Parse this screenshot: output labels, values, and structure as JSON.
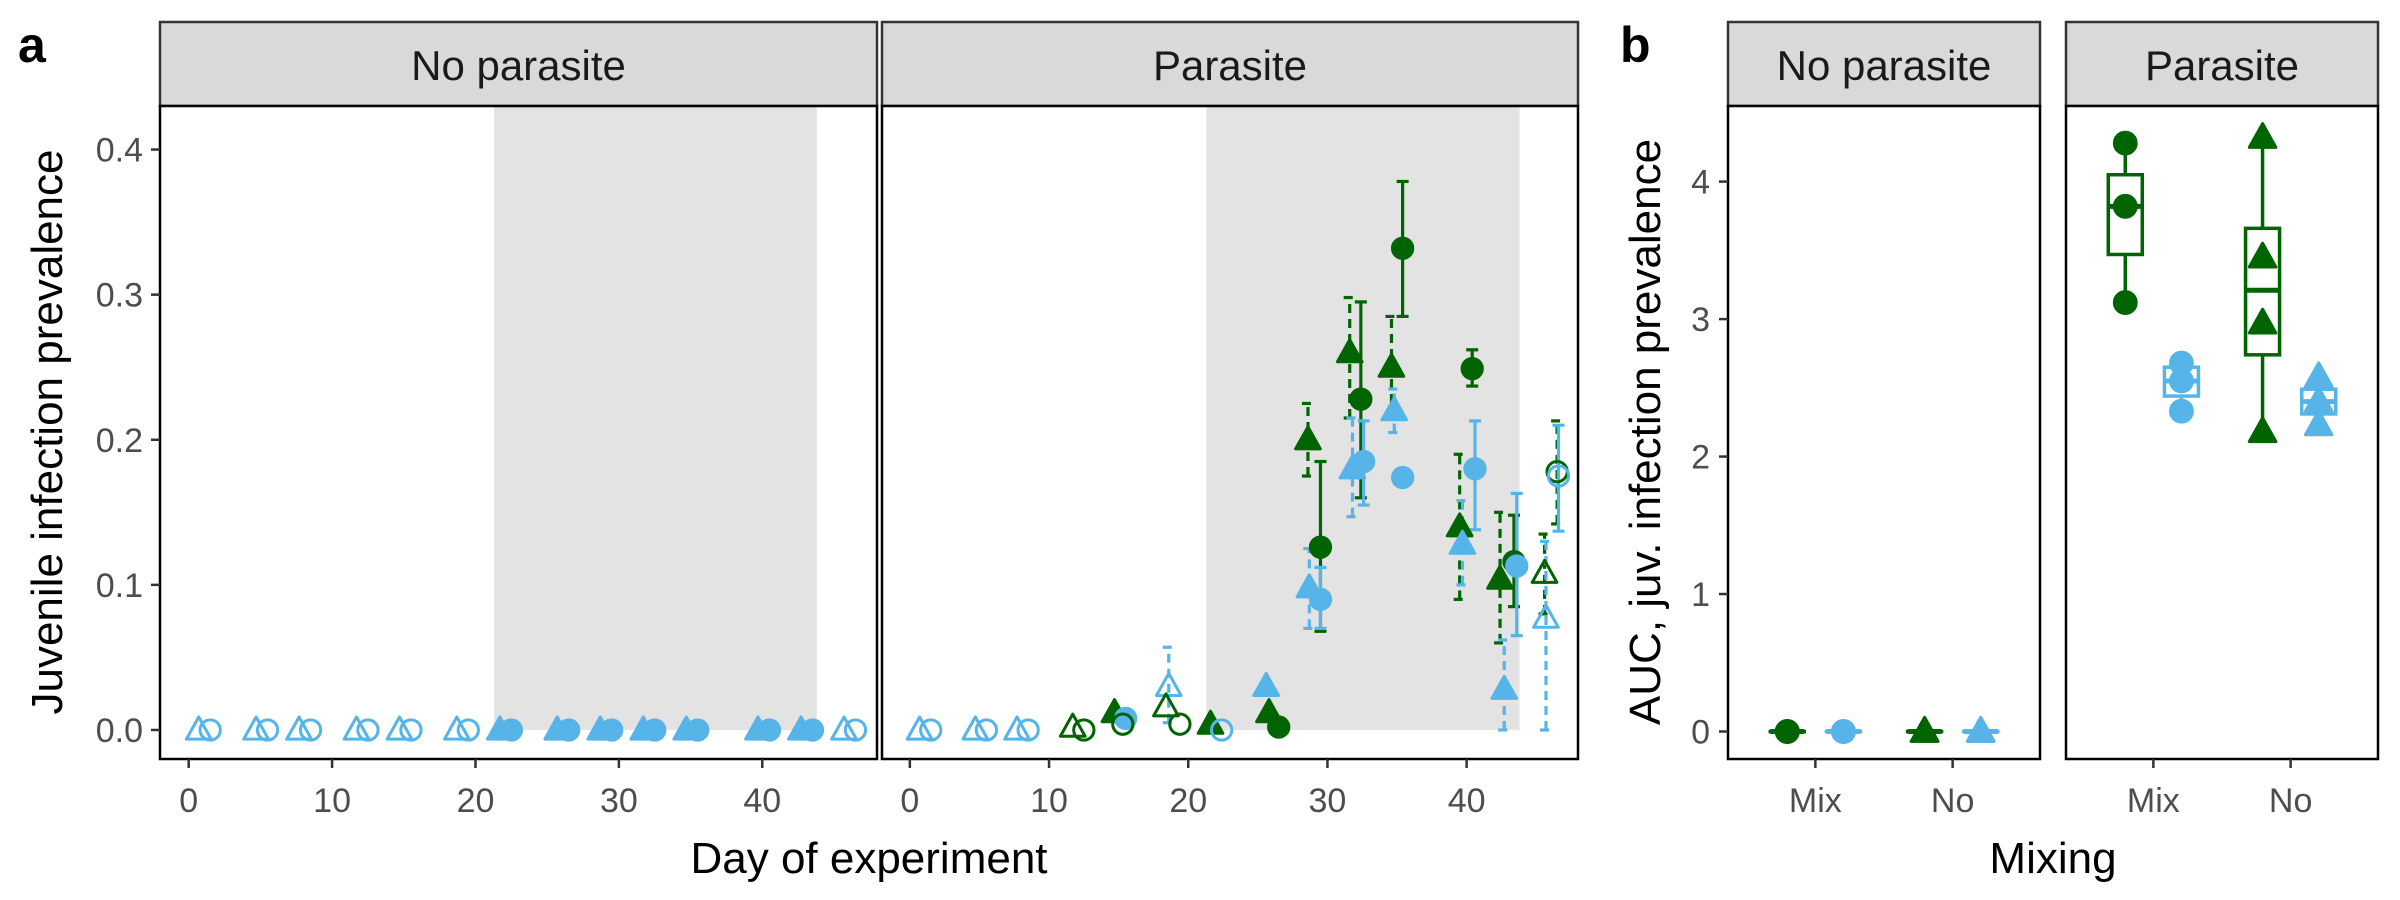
{
  "colors": {
    "treatment_a": "#006400",
    "treatment_b": "#56B4E9",
    "shade": "#e3e3e3",
    "strip": "#d9d9d9"
  },
  "chart_data": [
    {
      "panel": "a",
      "type": "scatter",
      "xlabel": "Day of experiment",
      "ylabel": "Juvenile infection prevalence",
      "xlim": [
        -2,
        48
      ],
      "ylim": [
        -0.02,
        0.43
      ],
      "x_ticks": [
        0,
        10,
        20,
        30,
        40
      ],
      "y_ticks": [
        0.0,
        0.1,
        0.2,
        0.3,
        0.4
      ],
      "y_tick_labels": [
        "0.0",
        "0.1",
        "0.2",
        "0.3",
        "0.4"
      ],
      "shaded_x_range": [
        21.3,
        43.8
      ],
      "facets": [
        {
          "strip": "No parasite",
          "points": [
            {
              "x": 0.7,
              "y": 0,
              "c": "treatment_b",
              "s": "triangle",
              "f": false
            },
            {
              "x": 1.5,
              "y": 0,
              "c": "treatment_b",
              "s": "circle",
              "f": false
            },
            {
              "x": 4.7,
              "y": 0,
              "c": "treatment_b",
              "s": "triangle",
              "f": false
            },
            {
              "x": 5.5,
              "y": 0,
              "c": "treatment_b",
              "s": "circle",
              "f": false
            },
            {
              "x": 7.7,
              "y": 0,
              "c": "treatment_b",
              "s": "triangle",
              "f": false
            },
            {
              "x": 8.5,
              "y": 0,
              "c": "treatment_b",
              "s": "circle",
              "f": false
            },
            {
              "x": 11.7,
              "y": 0,
              "c": "treatment_b",
              "s": "triangle",
              "f": false
            },
            {
              "x": 12.5,
              "y": 0,
              "c": "treatment_b",
              "s": "circle",
              "f": false
            },
            {
              "x": 14.7,
              "y": 0,
              "c": "treatment_b",
              "s": "triangle",
              "f": false
            },
            {
              "x": 15.5,
              "y": 0,
              "c": "treatment_b",
              "s": "circle",
              "f": false
            },
            {
              "x": 18.7,
              "y": 0,
              "c": "treatment_b",
              "s": "triangle",
              "f": false
            },
            {
              "x": 19.5,
              "y": 0,
              "c": "treatment_b",
              "s": "circle",
              "f": false
            },
            {
              "x": 21.7,
              "y": 0,
              "c": "treatment_b",
              "s": "triangle",
              "f": true
            },
            {
              "x": 22.5,
              "y": 0,
              "c": "treatment_b",
              "s": "circle",
              "f": true
            },
            {
              "x": 25.7,
              "y": 0,
              "c": "treatment_b",
              "s": "triangle",
              "f": true
            },
            {
              "x": 26.5,
              "y": 0,
              "c": "treatment_b",
              "s": "circle",
              "f": true
            },
            {
              "x": 28.7,
              "y": 0,
              "c": "treatment_b",
              "s": "triangle",
              "f": true
            },
            {
              "x": 29.5,
              "y": 0,
              "c": "treatment_b",
              "s": "circle",
              "f": true
            },
            {
              "x": 31.7,
              "y": 0,
              "c": "treatment_b",
              "s": "triangle",
              "f": true
            },
            {
              "x": 32.5,
              "y": 0,
              "c": "treatment_b",
              "s": "circle",
              "f": true
            },
            {
              "x": 34.7,
              "y": 0,
              "c": "treatment_b",
              "s": "triangle",
              "f": true
            },
            {
              "x": 35.5,
              "y": 0,
              "c": "treatment_b",
              "s": "circle",
              "f": true
            },
            {
              "x": 39.7,
              "y": 0,
              "c": "treatment_b",
              "s": "triangle",
              "f": true
            },
            {
              "x": 40.5,
              "y": 0,
              "c": "treatment_b",
              "s": "circle",
              "f": true
            },
            {
              "x": 42.7,
              "y": 0,
              "c": "treatment_b",
              "s": "triangle",
              "f": true
            },
            {
              "x": 43.5,
              "y": 0,
              "c": "treatment_b",
              "s": "circle",
              "f": true
            },
            {
              "x": 45.7,
              "y": 0,
              "c": "treatment_b",
              "s": "triangle",
              "f": false
            },
            {
              "x": 46.5,
              "y": 0,
              "c": "treatment_b",
              "s": "circle",
              "f": false
            }
          ]
        },
        {
          "strip": "Parasite",
          "points": [
            {
              "x": 0.7,
              "y": 0,
              "c": "treatment_b",
              "s": "triangle",
              "f": false
            },
            {
              "x": 1.5,
              "y": 0,
              "c": "treatment_b",
              "s": "circle",
              "f": false
            },
            {
              "x": 4.7,
              "y": 0,
              "c": "treatment_b",
              "s": "triangle",
              "f": false
            },
            {
              "x": 5.5,
              "y": 0,
              "c": "treatment_b",
              "s": "circle",
              "f": false
            },
            {
              "x": 7.7,
              "y": 0,
              "c": "treatment_b",
              "s": "triangle",
              "f": false
            },
            {
              "x": 8.5,
              "y": 0,
              "c": "treatment_b",
              "s": "circle",
              "f": false
            },
            {
              "x": 11.7,
              "y": 0.002,
              "c": "treatment_a",
              "s": "triangle",
              "f": false
            },
            {
              "x": 12.5,
              "y": 0,
              "c": "treatment_a",
              "s": "circle",
              "f": false
            },
            {
              "x": 14.7,
              "y": 0.012,
              "c": "treatment_a",
              "s": "triangle",
              "f": true
            },
            {
              "x": 15.5,
              "y": 0.008,
              "c": "treatment_b",
              "s": "circle",
              "f": true
            },
            {
              "x": 15.3,
              "y": 0.004,
              "c": "treatment_a",
              "s": "circle",
              "f": false
            },
            {
              "x": 18.6,
              "y": 0.03,
              "c": "treatment_b",
              "s": "triangle",
              "f": false,
              "lo": 0.005,
              "hi": 0.057,
              "dash": true
            },
            {
              "x": 18.4,
              "y": 0.016,
              "c": "treatment_a",
              "s": "triangle",
              "f": false
            },
            {
              "x": 19.4,
              "y": 0.004,
              "c": "treatment_a",
              "s": "circle",
              "f": false
            },
            {
              "x": 21.6,
              "y": 0.004,
              "c": "treatment_a",
              "s": "triangle",
              "f": true
            },
            {
              "x": 22.4,
              "y": 0,
              "c": "treatment_b",
              "s": "circle",
              "f": false
            },
            {
              "x": 25.6,
              "y": 0.03,
              "c": "treatment_b",
              "s": "triangle",
              "f": true
            },
            {
              "x": 25.8,
              "y": 0.012,
              "c": "treatment_a",
              "s": "triangle",
              "f": true
            },
            {
              "x": 26.5,
              "y": 0.002,
              "c": "treatment_a",
              "s": "circle",
              "f": true
            },
            {
              "x": 28.6,
              "y": 0.2,
              "c": "treatment_a",
              "s": "triangle",
              "f": true,
              "lo": 0.175,
              "hi": 0.225,
              "dash": true
            },
            {
              "x": 28.7,
              "y": 0.098,
              "c": "treatment_b",
              "s": "triangle",
              "f": true,
              "lo": 0.07,
              "hi": 0.125,
              "dash": true
            },
            {
              "x": 29.5,
              "y": 0.126,
              "c": "treatment_a",
              "s": "circle",
              "f": true,
              "lo": 0.068,
              "hi": 0.185,
              "dash": false
            },
            {
              "x": 29.5,
              "y": 0.09,
              "c": "treatment_b",
              "s": "circle",
              "f": true,
              "lo": 0.07,
              "hi": 0.112,
              "dash": false
            },
            {
              "x": 31.6,
              "y": 0.26,
              "c": "treatment_a",
              "s": "triangle",
              "f": true,
              "lo": 0.215,
              "hi": 0.298,
              "dash": true
            },
            {
              "x": 31.8,
              "y": 0.18,
              "c": "treatment_b",
              "s": "triangle",
              "f": true,
              "lo": 0.147,
              "hi": 0.215,
              "dash": true
            },
            {
              "x": 32.4,
              "y": 0.228,
              "c": "treatment_a",
              "s": "circle",
              "f": true,
              "lo": 0.16,
              "hi": 0.295,
              "dash": false
            },
            {
              "x": 32.6,
              "y": 0.185,
              "c": "treatment_b",
              "s": "circle",
              "f": true,
              "lo": 0.155,
              "hi": 0.213,
              "dash": false
            },
            {
              "x": 34.6,
              "y": 0.25,
              "c": "treatment_a",
              "s": "triangle",
              "f": true,
              "lo": 0.215,
              "hi": 0.285,
              "dash": true
            },
            {
              "x": 34.8,
              "y": 0.22,
              "c": "treatment_b",
              "s": "triangle",
              "f": true,
              "lo": 0.205,
              "hi": 0.235,
              "dash": true
            },
            {
              "x": 35.4,
              "y": 0.332,
              "c": "treatment_a",
              "s": "circle",
              "f": true,
              "lo": 0.285,
              "hi": 0.378,
              "dash": false
            },
            {
              "x": 35.4,
              "y": 0.174,
              "c": "treatment_b",
              "s": "circle",
              "f": true
            },
            {
              "x": 39.5,
              "y": 0.14,
              "c": "treatment_a",
              "s": "triangle",
              "f": true,
              "lo": 0.09,
              "hi": 0.19,
              "dash": true
            },
            {
              "x": 39.7,
              "y": 0.128,
              "c": "treatment_b",
              "s": "triangle",
              "f": true,
              "lo": 0.1,
              "hi": 0.158,
              "dash": true
            },
            {
              "x": 40.4,
              "y": 0.249,
              "c": "treatment_a",
              "s": "circle",
              "f": true,
              "lo": 0.237,
              "hi": 0.262,
              "dash": false
            },
            {
              "x": 40.6,
              "y": 0.18,
              "c": "treatment_b",
              "s": "circle",
              "f": true,
              "lo": 0.138,
              "hi": 0.213,
              "dash": false
            },
            {
              "x": 42.4,
              "y": 0.104,
              "c": "treatment_a",
              "s": "triangle",
              "f": true,
              "lo": 0.06,
              "hi": 0.15,
              "dash": true
            },
            {
              "x": 42.7,
              "y": 0.028,
              "c": "treatment_b",
              "s": "triangle",
              "f": true,
              "lo": 0.0,
              "hi": 0.062,
              "dash": true
            },
            {
              "x": 43.4,
              "y": 0.116,
              "c": "treatment_a",
              "s": "circle",
              "f": true,
              "lo": 0.085,
              "hi": 0.148,
              "dash": false
            },
            {
              "x": 43.6,
              "y": 0.113,
              "c": "treatment_b",
              "s": "circle",
              "f": true,
              "lo": 0.065,
              "hi": 0.163,
              "dash": false
            },
            {
              "x": 45.6,
              "y": 0.108,
              "c": "treatment_a",
              "s": "triangle",
              "f": false,
              "lo": 0.08,
              "hi": 0.135,
              "dash": true
            },
            {
              "x": 45.7,
              "y": 0.077,
              "c": "treatment_b",
              "s": "triangle",
              "f": false,
              "lo": 0.0,
              "hi": 0.13,
              "dash": true
            },
            {
              "x": 46.5,
              "y": 0.178,
              "c": "treatment_a",
              "s": "circle",
              "f": false,
              "lo": 0.142,
              "hi": 0.213,
              "dash": true
            },
            {
              "x": 46.6,
              "y": 0.175,
              "c": "treatment_b",
              "s": "circle",
              "f": false,
              "lo": 0.137,
              "hi": 0.21,
              "dash": false
            }
          ]
        }
      ]
    },
    {
      "panel": "b",
      "type": "box",
      "xlabel": "Mixing",
      "ylabel": "AUC, juv. infection prevalence",
      "ylim": [
        -0.2,
        4.55
      ],
      "y_ticks": [
        0,
        1,
        2,
        3,
        4
      ],
      "y_tick_labels": [
        "0",
        "1",
        "2",
        "3",
        "4"
      ],
      "categories": [
        "Mix",
        "No"
      ],
      "facets": [
        {
          "strip": "No parasite",
          "groups": [
            {
              "category": "Mix",
              "offset": -0.18,
              "c": "treatment_a",
              "s": "circle",
              "points": [
                0,
                0,
                0
              ],
              "box": {
                "q1": 0,
                "median": 0,
                "q3": 0,
                "min": 0,
                "max": 0
              }
            },
            {
              "category": "Mix",
              "offset": 0.18,
              "c": "treatment_b",
              "s": "circle",
              "points": [
                0,
                0,
                0
              ],
              "box": {
                "q1": 0,
                "median": 0,
                "q3": 0,
                "min": 0,
                "max": 0
              }
            },
            {
              "category": "No",
              "offset": -0.18,
              "c": "treatment_a",
              "s": "triangle",
              "points": [
                0,
                0,
                0
              ],
              "box": {
                "q1": 0,
                "median": 0,
                "q3": 0,
                "min": 0,
                "max": 0
              }
            },
            {
              "category": "No",
              "offset": 0.18,
              "c": "treatment_b",
              "s": "triangle",
              "points": [
                0,
                0,
                0
              ],
              "box": {
                "q1": 0,
                "median": 0,
                "q3": 0,
                "min": 0,
                "max": 0
              }
            }
          ]
        },
        {
          "strip": "Parasite",
          "groups": [
            {
              "category": "Mix",
              "offset": -0.18,
              "c": "treatment_a",
              "s": "circle",
              "points": [
                4.28,
                3.82,
                3.12
              ],
              "box": {
                "q1": 3.47,
                "median": 3.82,
                "q3": 4.05,
                "min": 3.12,
                "max": 4.28
              }
            },
            {
              "category": "Mix",
              "offset": 0.18,
              "c": "treatment_b",
              "s": "circle",
              "points": [
                2.68,
                2.55,
                2.33
              ],
              "box": {
                "q1": 2.44,
                "median": 2.55,
                "q3": 2.65,
                "min": 2.33,
                "max": 2.68
              }
            },
            {
              "category": "No",
              "offset": -0.18,
              "c": "treatment_a",
              "s": "triangle",
              "points": [
                4.32,
                3.45,
                2.97,
                2.18
              ],
              "box": {
                "q1": 2.74,
                "median": 3.21,
                "q3": 3.66,
                "min": 2.18,
                "max": 4.32
              }
            },
            {
              "category": "No",
              "offset": 0.18,
              "c": "treatment_b",
              "s": "triangle",
              "points": [
                2.58,
                2.4,
                2.23
              ],
              "box": {
                "q1": 2.31,
                "median": 2.4,
                "q3": 2.49,
                "min": 2.23,
                "max": 2.58
              }
            }
          ]
        }
      ]
    }
  ]
}
